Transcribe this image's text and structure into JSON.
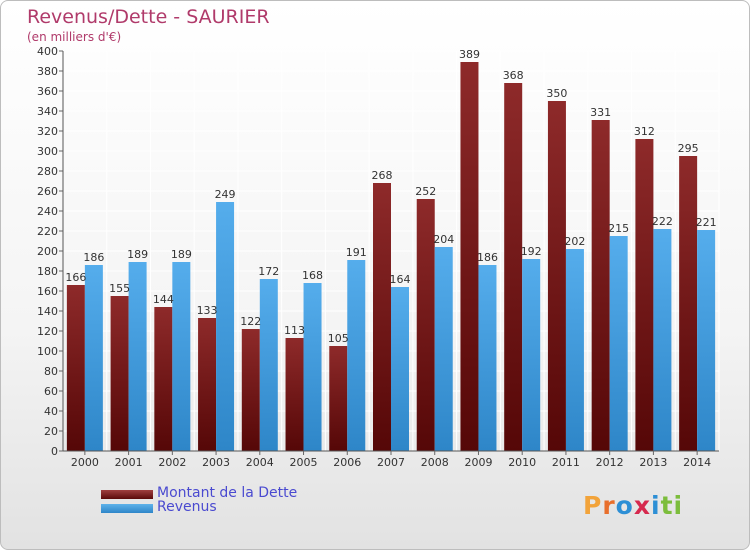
{
  "title": "Revenus/Dette - SAURIER",
  "subtitle": "(en milliers d'€)",
  "legend": {
    "debt_label": "Montant de la Dette",
    "revenue_label": "Revenus"
  },
  "brand": {
    "letters": [
      "P",
      "r",
      "o",
      "x",
      "i",
      "t",
      "i"
    ],
    "colors": [
      "#f2a33a",
      "#e86f2c",
      "#2d8fd5",
      "#d6294e",
      "#2d8fd5",
      "#7cbd3c",
      "#7cbd3c"
    ]
  },
  "colors": {
    "debt": "#7a1d1d",
    "revenue": "#4aa3e5",
    "title": "#b03a6a",
    "legend_text": "#4a4ad0"
  },
  "chart_data": {
    "type": "bar",
    "title": "Revenus/Dette - SAURIER",
    "subtitle": "(en milliers d'€)",
    "categories": [
      "2000",
      "2001",
      "2002",
      "2003",
      "2004",
      "2005",
      "2006",
      "2007",
      "2008",
      "2009",
      "2010",
      "2011",
      "2012",
      "2013",
      "2014"
    ],
    "series": [
      {
        "name": "Montant de la Dette",
        "values": [
          166,
          155,
          144,
          133,
          122,
          113,
          105,
          268,
          252,
          389,
          368,
          350,
          331,
          312,
          295
        ]
      },
      {
        "name": "Revenus",
        "values": [
          186,
          189,
          189,
          249,
          172,
          168,
          191,
          164,
          204,
          186,
          192,
          202,
          215,
          222,
          221
        ]
      }
    ],
    "ylim": [
      0,
      400
    ],
    "yticks": [
      0,
      20,
      40,
      60,
      80,
      100,
      120,
      140,
      160,
      180,
      200,
      220,
      240,
      260,
      280,
      300,
      320,
      340,
      360,
      380,
      400
    ],
    "grid": true,
    "legend_position": "bottom-left"
  }
}
